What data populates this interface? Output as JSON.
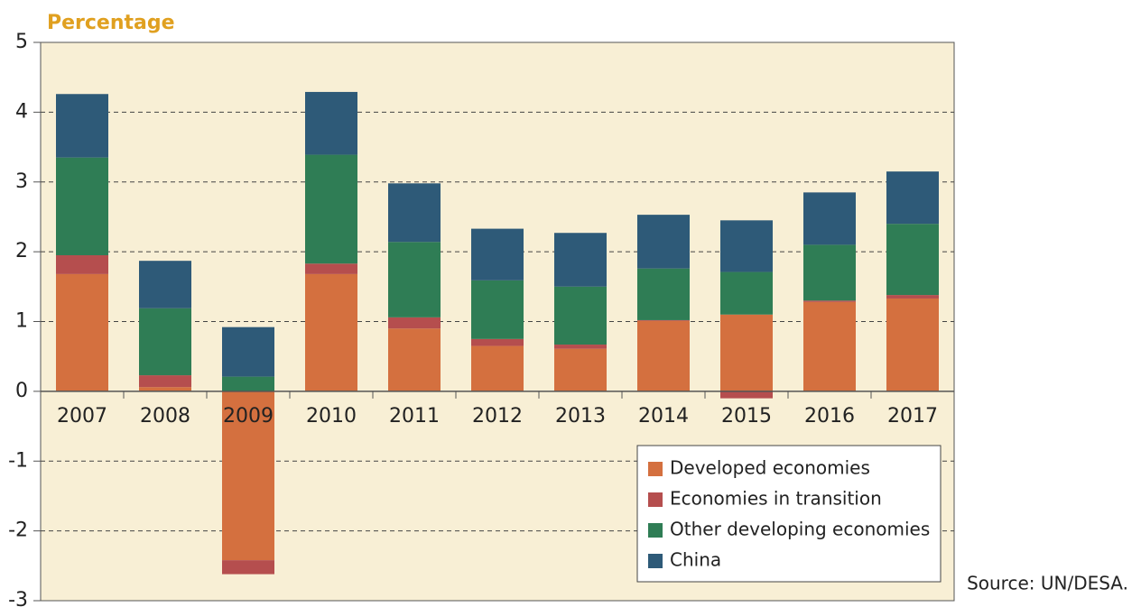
{
  "chart_data": {
    "type": "stacked_bar",
    "y_axis_label": "Percentage",
    "source": "Source: UN/DESA.",
    "categories": [
      "2007",
      "2008",
      "2009",
      "2010",
      "2011",
      "2012",
      "2013",
      "2014",
      "2015",
      "2016",
      "2017"
    ],
    "series": [
      {
        "name": "Developed economies",
        "color": "#d4703f",
        "values": [
          1.68,
          0.06,
          -2.42,
          1.68,
          0.9,
          0.65,
          0.61,
          1.01,
          1.1,
          1.28,
          1.33
        ]
      },
      {
        "name": "Economies in transition",
        "color": "#b54e4e",
        "values": [
          0.27,
          0.17,
          -0.2,
          0.15,
          0.16,
          0.1,
          0.06,
          0.01,
          -0.1,
          0.02,
          0.05
        ]
      },
      {
        "name": "Other developing economies",
        "color": "#2f7d55",
        "values": [
          1.4,
          0.96,
          0.21,
          1.56,
          1.08,
          0.84,
          0.83,
          0.74,
          0.61,
          0.8,
          1.02
        ]
      },
      {
        "name": "China",
        "color": "#2e5a78",
        "values": [
          0.91,
          0.68,
          0.71,
          0.9,
          0.84,
          0.74,
          0.77,
          0.77,
          0.74,
          0.75,
          0.75
        ]
      }
    ],
    "ylim": [
      -3,
      5
    ],
    "yticks": [
      -3,
      -2,
      -1,
      0,
      1,
      2,
      3,
      4,
      5
    ],
    "grid": true,
    "legend": "lower right"
  }
}
